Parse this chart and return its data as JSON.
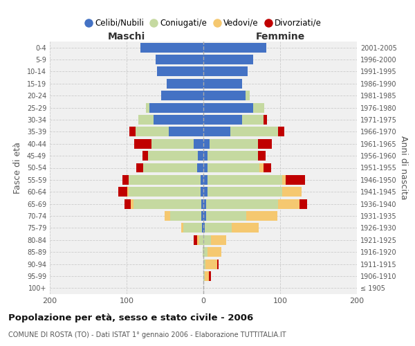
{
  "age_groups": [
    "100+",
    "95-99",
    "90-94",
    "85-89",
    "80-84",
    "75-79",
    "70-74",
    "65-69",
    "60-64",
    "55-59",
    "50-54",
    "45-49",
    "40-44",
    "35-39",
    "30-34",
    "25-29",
    "20-24",
    "15-19",
    "10-14",
    "5-9",
    "0-4"
  ],
  "birth_years": [
    "≤ 1905",
    "1906-1910",
    "1911-1915",
    "1916-1920",
    "1921-1925",
    "1926-1930",
    "1931-1935",
    "1936-1940",
    "1941-1945",
    "1946-1950",
    "1951-1955",
    "1956-1960",
    "1961-1965",
    "1966-1970",
    "1971-1975",
    "1976-1980",
    "1981-1985",
    "1986-1990",
    "1991-1995",
    "1996-2000",
    "2001-2005"
  ],
  "males_celibi": [
    0,
    0,
    0,
    0,
    0,
    2,
    3,
    3,
    4,
    4,
    8,
    7,
    13,
    45,
    65,
    70,
    55,
    48,
    60,
    62,
    82
  ],
  "males_coniugati": [
    0,
    0,
    0,
    1,
    5,
    24,
    40,
    88,
    93,
    93,
    70,
    65,
    55,
    43,
    20,
    5,
    0,
    0,
    0,
    0,
    0
  ],
  "males_vedovi": [
    0,
    0,
    0,
    0,
    3,
    3,
    7,
    4,
    2,
    0,
    0,
    0,
    0,
    0,
    0,
    0,
    0,
    0,
    0,
    0,
    0
  ],
  "males_divorziati": [
    0,
    0,
    0,
    0,
    5,
    0,
    0,
    8,
    12,
    8,
    9,
    7,
    22,
    8,
    0,
    0,
    0,
    0,
    0,
    0,
    0
  ],
  "females_nubili": [
    0,
    0,
    0,
    0,
    0,
    2,
    4,
    4,
    5,
    5,
    5,
    5,
    8,
    35,
    50,
    65,
    55,
    50,
    58,
    65,
    82
  ],
  "females_coniugate": [
    0,
    2,
    3,
    5,
    10,
    35,
    52,
    93,
    98,
    98,
    68,
    66,
    63,
    62,
    28,
    14,
    5,
    0,
    0,
    0,
    0
  ],
  "females_vedove": [
    0,
    5,
    15,
    18,
    20,
    35,
    40,
    28,
    25,
    4,
    5,
    0,
    0,
    0,
    0,
    0,
    0,
    0,
    0,
    0,
    0
  ],
  "females_divorziate": [
    0,
    3,
    2,
    0,
    0,
    0,
    0,
    10,
    0,
    25,
    10,
    10,
    18,
    8,
    5,
    0,
    0,
    0,
    0,
    0,
    0
  ],
  "color_celibi": "#4472c4",
  "color_coniugati": "#c5d9a0",
  "color_vedovi": "#f5c870",
  "color_divorziati": "#c00000",
  "title": "Popolazione per età, sesso e stato civile - 2006",
  "subtitle": "COMUNE DI ROSTA (TO) - Dati ISTAT 1° gennaio 2006 - Elaborazione TUTTITALIA.IT",
  "label_maschi": "Maschi",
  "label_femmine": "Femmine",
  "ylabel_left": "Fasce di età",
  "ylabel_right": "Anni di nascita",
  "legend_labels": [
    "Celibi/Nubili",
    "Coniugati/e",
    "Vedovi/e",
    "Divorziati/e"
  ],
  "xlim": 200,
  "bg_outer": "#ffffff",
  "bg_plot": "#f0f0f0",
  "grid_color": "#cccccc"
}
